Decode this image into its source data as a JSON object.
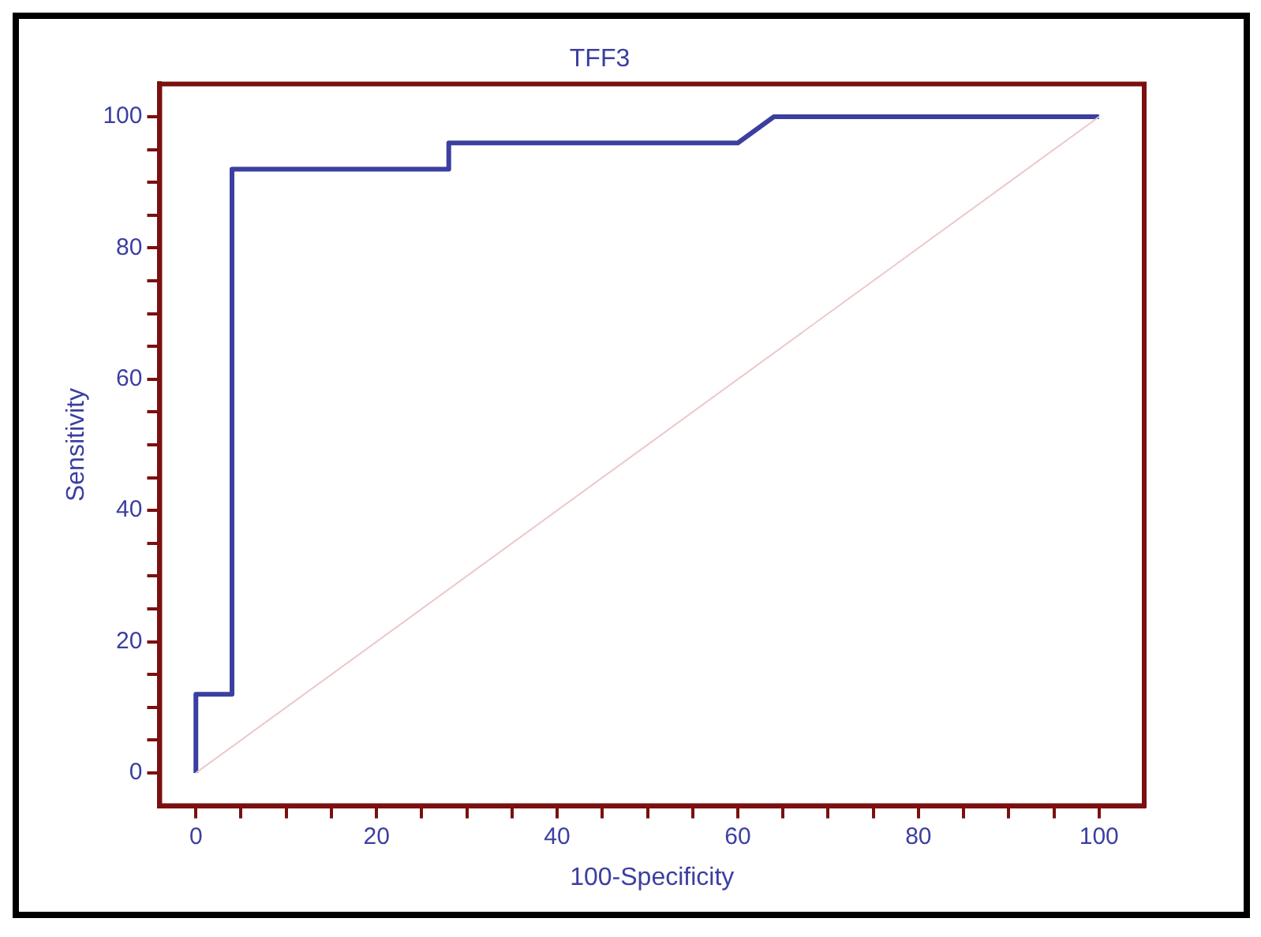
{
  "chart_data": {
    "type": "line",
    "title": "TFF3",
    "xlabel": "100-Specificity",
    "ylabel": "Sensitivity",
    "series": [
      {
        "color": "#3b3fa0",
        "x": [
          0,
          0,
          4,
          4,
          28,
          28,
          60,
          64,
          100
        ],
        "values": [
          0,
          12,
          12,
          92,
          92,
          96,
          96,
          100,
          100
        ]
      },
      {
        "color": "#ecc8c8",
        "x": [
          0,
          100
        ],
        "values": [
          0,
          100
        ]
      }
    ],
    "xlim": [
      -4,
      105
    ],
    "ylim": [
      -5,
      105
    ],
    "xticks": [
      0,
      {
        "value": 5,
        "label": null
      },
      {
        "value": 10,
        "label": null
      },
      {
        "value": 15,
        "label": null
      },
      20,
      {
        "value": 25,
        "label": null
      },
      {
        "value": 30,
        "label": null
      },
      {
        "value": 35,
        "label": null
      },
      40,
      {
        "value": 45,
        "label": null
      },
      {
        "value": 50,
        "label": null
      },
      {
        "value": 55,
        "label": null
      },
      60,
      {
        "value": 65,
        "label": null
      },
      {
        "value": 70,
        "label": null
      },
      {
        "value": 75,
        "label": null
      },
      80,
      {
        "value": 85,
        "label": null
      },
      {
        "value": 90,
        "label": null
      },
      {
        "value": 95,
        "label": null
      },
      100
    ],
    "yticks": [
      0,
      {
        "value": 5,
        "label": null
      },
      {
        "value": 10,
        "label": null
      },
      {
        "value": 15,
        "label": null
      },
      20,
      {
        "value": 25,
        "label": null
      },
      {
        "value": 30,
        "label": null
      },
      {
        "value": 35,
        "label": null
      },
      40,
      {
        "value": 45,
        "label": null
      },
      {
        "value": 50,
        "label": null
      },
      {
        "value": 55,
        "label": null
      },
      60,
      {
        "value": 65,
        "label": null
      },
      {
        "value": 70,
        "label": null
      },
      {
        "value": 75,
        "label": null
      },
      80,
      {
        "value": 85,
        "label": null
      },
      {
        "value": 90,
        "label": null
      },
      {
        "value": 95,
        "label": null
      },
      100
    ],
    "grid": false,
    "legend": false,
    "marker": "none",
    "line_style": "solid"
  }
}
